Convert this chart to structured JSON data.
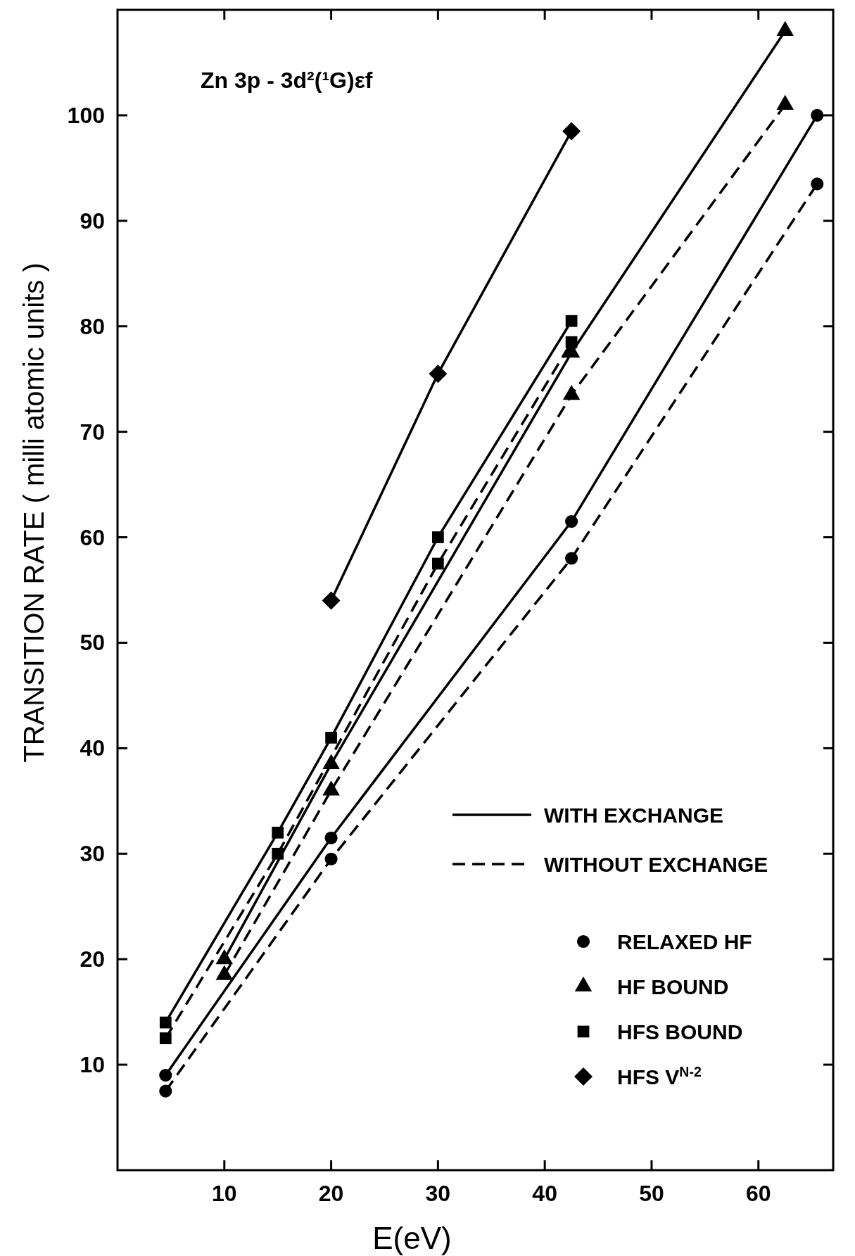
{
  "chart_data": {
    "type": "line",
    "title": "Zn 3p - 3d²(¹G)εf",
    "xlabel": "E(eV)",
    "ylabel": "TRANSITION RATE  ( milli atomic units )",
    "xlim": [
      0,
      67
    ],
    "ylim": [
      0,
      110
    ],
    "xticks": [
      10,
      20,
      30,
      40,
      50,
      60
    ],
    "yticks": [
      10,
      20,
      30,
      40,
      50,
      60,
      70,
      80,
      90,
      100
    ],
    "grid": false,
    "legend": "bottom right",
    "annotations": [
      "WITH EXCHANGE",
      "WITHOUT EXCHANGE"
    ],
    "series": [
      {
        "name": "RELAXED HF",
        "color": "#000000",
        "marker": "circle",
        "line_style": "solid",
        "x": [
          4.5,
          20,
          42.5,
          65.5
        ],
        "values": [
          9,
          31.5,
          61.5,
          100
        ]
      },
      {
        "color": "#000000",
        "marker": "circle",
        "line_style": "dashed",
        "x": [
          4.5,
          20,
          42.5,
          65.5
        ],
        "values": [
          7.5,
          29.5,
          58,
          93.5
        ]
      },
      {
        "name": "HF BOUND",
        "color": "#000000",
        "marker": "triangle",
        "line_style": "solid",
        "x": [
          10,
          20,
          42.5,
          62.5
        ],
        "values": [
          20,
          38.5,
          77.5,
          108
        ]
      },
      {
        "color": "#000000",
        "marker": "triangle",
        "line_style": "dashed",
        "x": [
          10,
          20,
          42.5,
          62.5
        ],
        "values": [
          18.5,
          36,
          73.5,
          101
        ]
      },
      {
        "name": "HFS BOUND",
        "color": "#000000",
        "marker": "square",
        "line_style": "solid",
        "x": [
          4.5,
          15,
          20,
          30,
          42.5
        ],
        "values": [
          14,
          32,
          41,
          60,
          80.5
        ]
      },
      {
        "color": "#000000",
        "marker": "square",
        "line_style": "dashed",
        "x": [
          4.5,
          15,
          30,
          42.5
        ],
        "values": [
          12.5,
          30,
          57.5,
          78.5
        ]
      },
      {
        "name": "HFS V$^{N-2}$",
        "color": "#000000",
        "marker": "diamond",
        "line_style": "solid",
        "x": [
          20,
          30,
          42.5
        ],
        "values": [
          54,
          75.5,
          98.5
        ]
      }
    ]
  }
}
